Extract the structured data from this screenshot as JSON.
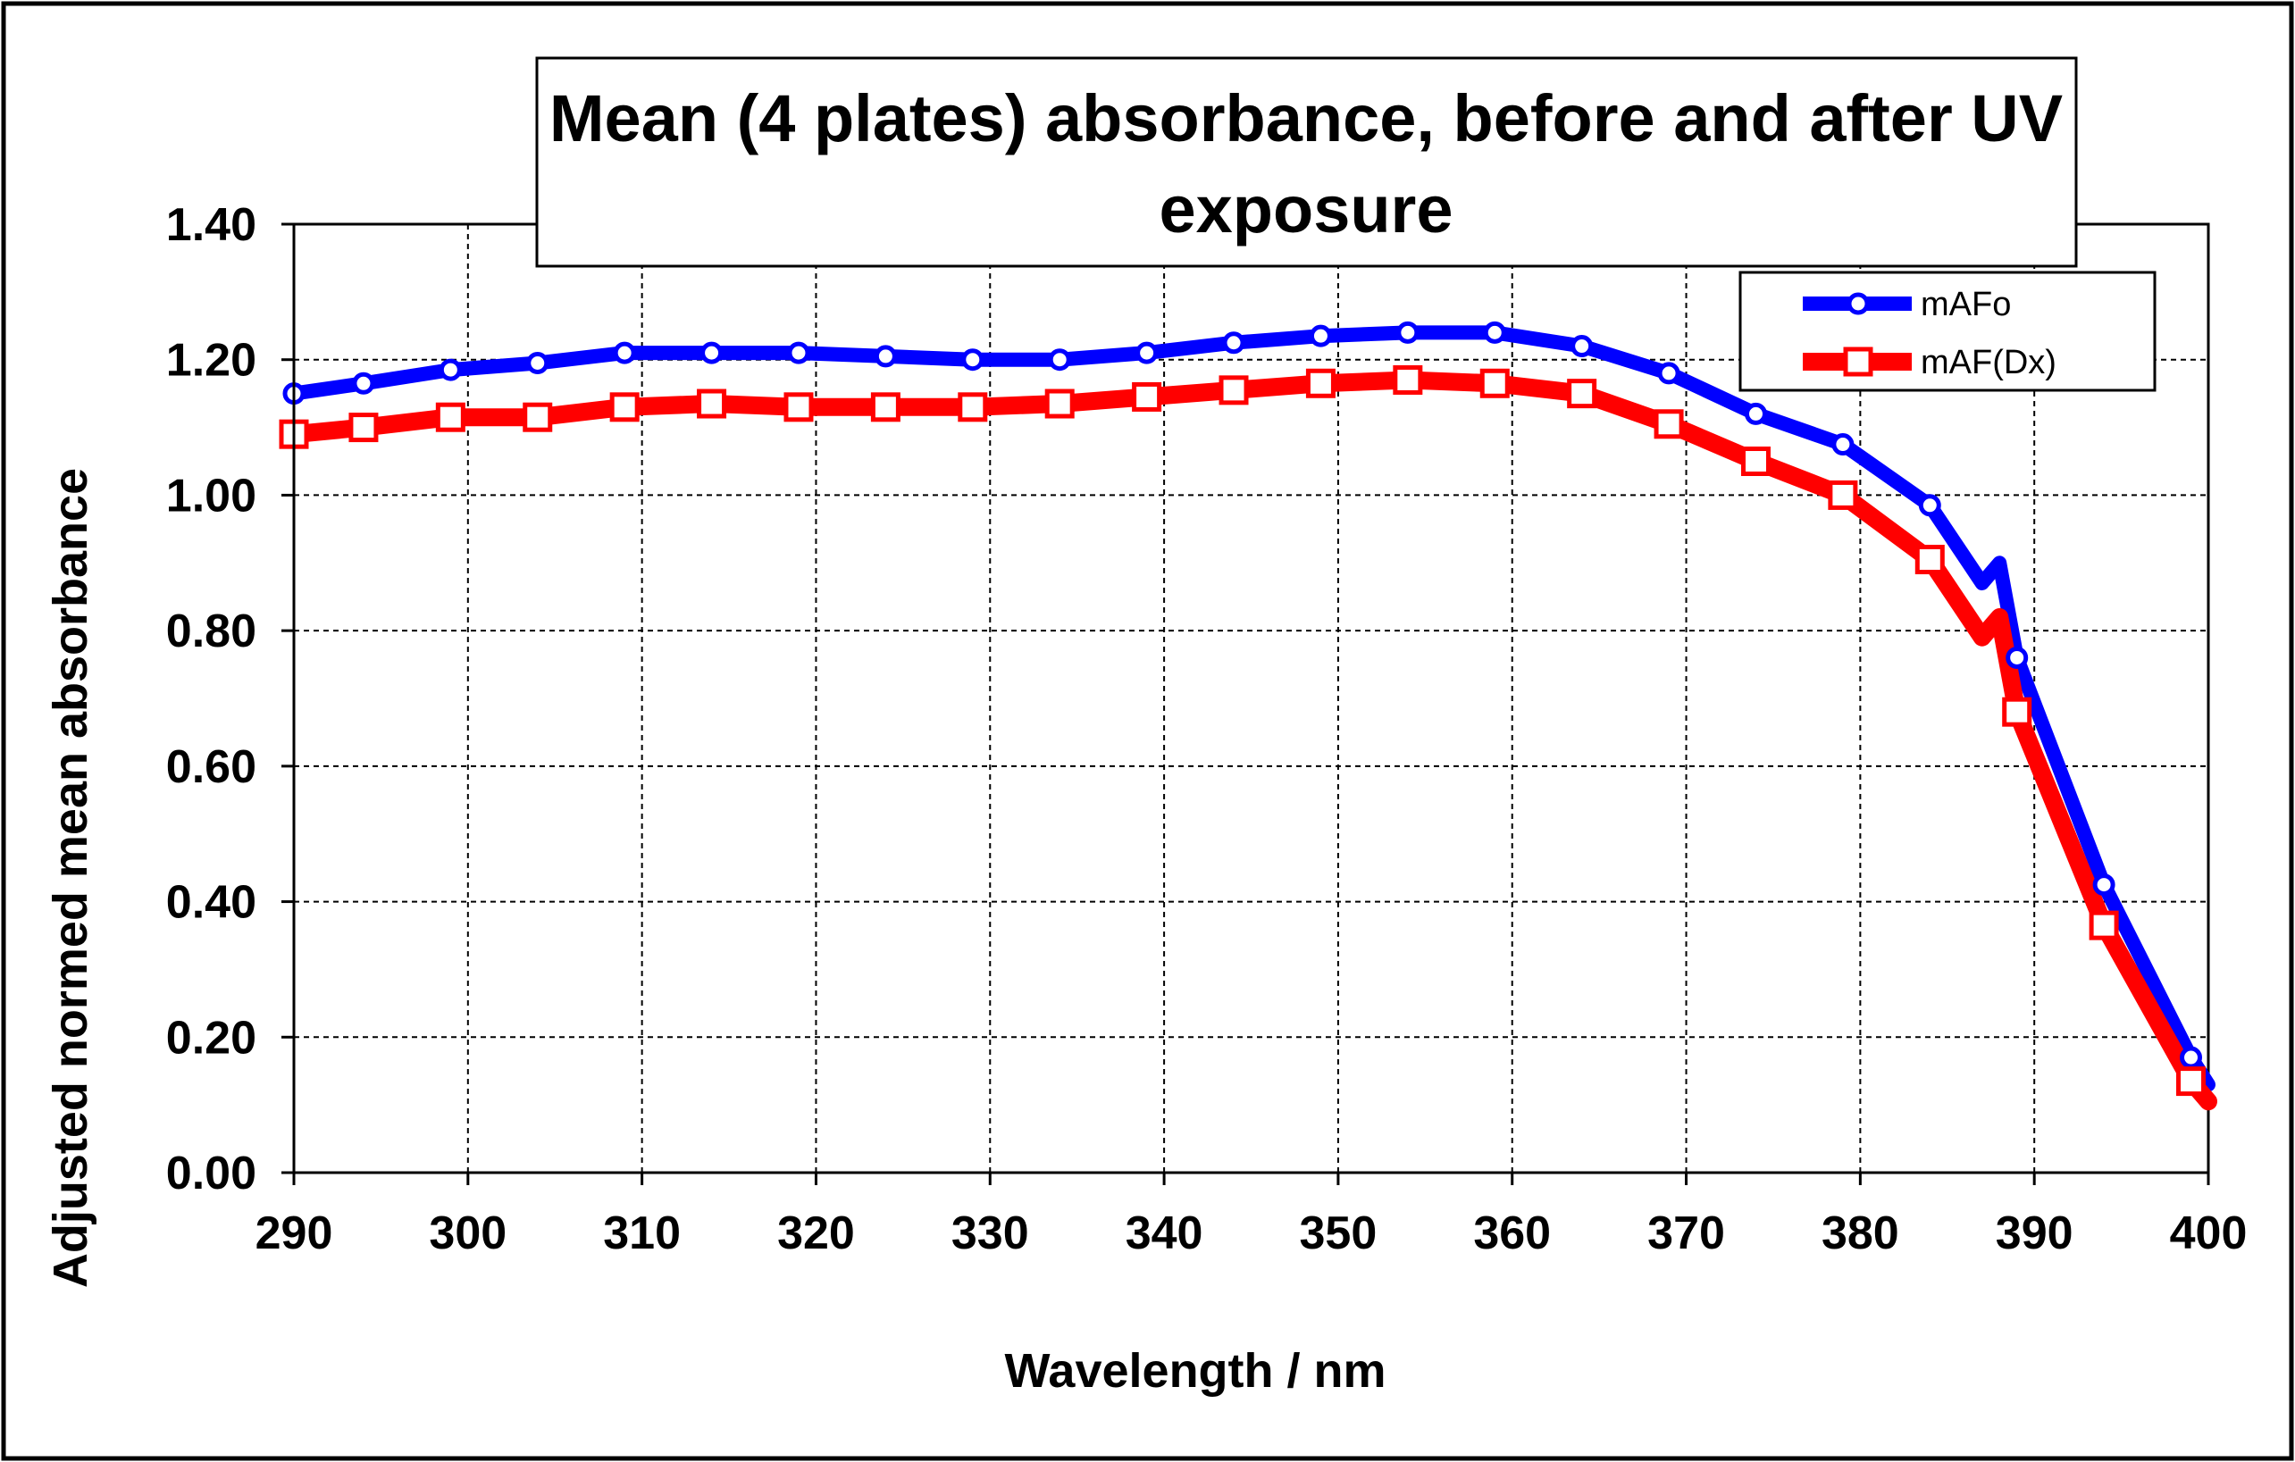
{
  "chart_data": {
    "type": "line",
    "title": "Mean (4 plates) absorbance, before and after UV exposure",
    "title_lines": [
      "Mean (4 plates) absorbance, before and after UV",
      "exposure"
    ],
    "xlabel": "Wavelength / nm",
    "ylabel": "Adjusted normed mean absorbance",
    "xlim": [
      290,
      400
    ],
    "ylim": [
      0,
      1.4
    ],
    "xticks": [
      290,
      300,
      310,
      320,
      330,
      340,
      350,
      360,
      370,
      380,
      390,
      400
    ],
    "xtick_labels": [
      "290",
      "300",
      "310",
      "320",
      "330",
      "340",
      "350",
      "360",
      "370",
      "380",
      "390",
      "400"
    ],
    "yticks": [
      0,
      0.2,
      0.4,
      0.6,
      0.8,
      1.0,
      1.2,
      1.4
    ],
    "ytick_labels": [
      "0.00",
      "0.20",
      "0.40",
      "0.60",
      "0.80",
      "1.00",
      "1.20",
      "1.40"
    ],
    "grid": true,
    "legend_position": "top-right",
    "marker_x": [
      290,
      294,
      299,
      304,
      309,
      314,
      319,
      324,
      329,
      334,
      339,
      344,
      349,
      354,
      359,
      364,
      369,
      374,
      379,
      384,
      389,
      394,
      399
    ],
    "series": [
      {
        "name": "mAFo",
        "color": "#0000ff",
        "marker": "circle",
        "x": [
          290,
          294,
          299,
          304,
          309,
          314,
          319,
          324,
          329,
          334,
          339,
          344,
          349,
          354,
          359,
          364,
          369,
          374,
          379,
          384,
          387,
          388,
          389,
          394,
          399,
          400
        ],
        "values": [
          1.15,
          1.165,
          1.185,
          1.195,
          1.21,
          1.21,
          1.21,
          1.205,
          1.2,
          1.2,
          1.21,
          1.225,
          1.235,
          1.24,
          1.24,
          1.22,
          1.18,
          1.12,
          1.075,
          0.985,
          0.87,
          0.9,
          0.76,
          0.425,
          0.17,
          0.13
        ]
      },
      {
        "name": "mAF(Dx)",
        "color": "#ff0000",
        "marker": "square",
        "x": [
          290,
          294,
          299,
          304,
          309,
          314,
          319,
          324,
          329,
          334,
          339,
          344,
          349,
          354,
          359,
          364,
          369,
          374,
          379,
          384,
          387,
          388,
          389,
          394,
          399,
          400
        ],
        "values": [
          1.09,
          1.1,
          1.115,
          1.115,
          1.13,
          1.135,
          1.13,
          1.13,
          1.13,
          1.135,
          1.145,
          1.155,
          1.165,
          1.17,
          1.165,
          1.15,
          1.105,
          1.05,
          1.0,
          0.905,
          0.79,
          0.82,
          0.68,
          0.365,
          0.135,
          0.105
        ]
      }
    ]
  }
}
